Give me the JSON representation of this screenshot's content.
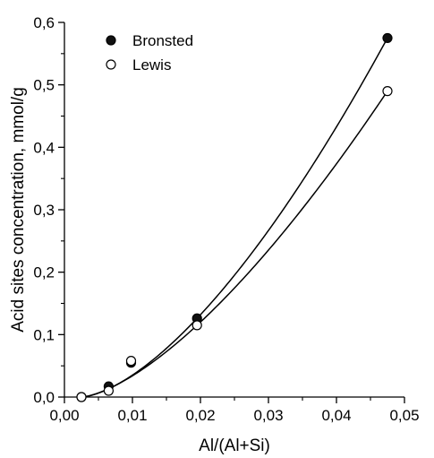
{
  "chart_data": {
    "type": "scatter",
    "xlabel": "Al/(Al+Si)",
    "ylabel": "Acid sites concentration, mmol/g",
    "xlim": [
      0.0,
      0.05
    ],
    "ylim": [
      0.0,
      0.6
    ],
    "x_ticks": [
      "0,00",
      "0,01",
      "0,02",
      "0,03",
      "0,04",
      "0,05"
    ],
    "y_ticks": [
      "0,0",
      "0,1",
      "0,2",
      "0,3",
      "0,4",
      "0,5",
      "0,6"
    ],
    "grid": false,
    "legend_position": "top-left",
    "series": [
      {
        "name": "Bronsted",
        "marker": "filled-circle",
        "x": [
          0.0025,
          0.0065,
          0.0098,
          0.0195,
          0.0475
        ],
        "y": [
          0.0,
          0.017,
          0.055,
          0.126,
          0.575
        ],
        "fit": "power"
      },
      {
        "name": "Lewis",
        "marker": "open-circle",
        "x": [
          0.0025,
          0.0065,
          0.0098,
          0.0195,
          0.0475
        ],
        "y": [
          0.0,
          0.01,
          0.058,
          0.115,
          0.49
        ],
        "fit": "power"
      }
    ]
  }
}
